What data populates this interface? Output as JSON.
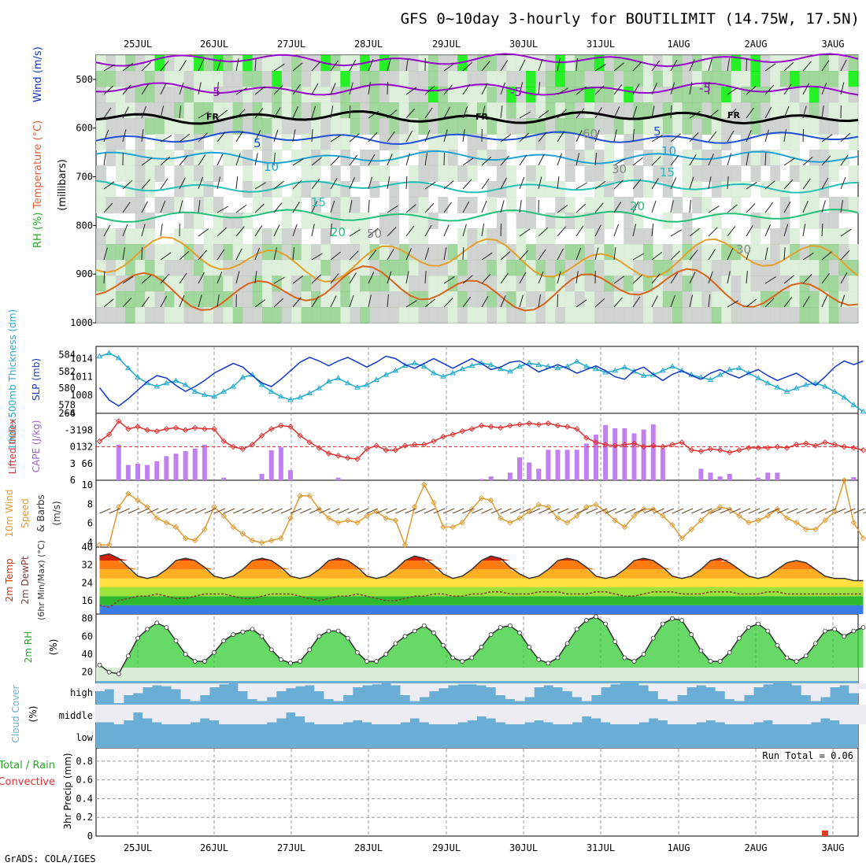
{
  "title": "GFS 0~10day 3-hourly for BOUTILIMIT (14.75W, 17.5N)",
  "credit": "GrADS: COLA/IGES",
  "colors": {
    "rh_light": "#d8ecd6",
    "rh_mid": "#90d08c",
    "rh_dark": "#33cc33",
    "rh_bright": "#00ee00",
    "grey_shade": "#c8cdc8",
    "freezing": "#000000",
    "purple": "#9900cc",
    "blue": "#1f52d6",
    "cyan": "#1fa3d6",
    "teal": "#22c0b8",
    "green_iso": "#22c07a",
    "orange": "#e3a02a",
    "orange_dark": "#d9641e",
    "slp": "#1138c8",
    "thick": "#22aacc",
    "lifted": "#e03030",
    "cape": "#c080f0",
    "wind": "#e09a30",
    "barb": "#6b4a2a",
    "temp_band": "#f0a020",
    "rh2m": "#33cc33",
    "cloud": "#6aaed6",
    "precip": "#e04020"
  },
  "days": [
    "25JUL",
    "26JUL",
    "27JUL",
    "28JUL",
    "29JUL",
    "30JUL",
    "31JUL",
    "1AUG",
    "2AUG",
    "3AUG"
  ],
  "panels": {
    "upper": {
      "ylabel_parts": [
        "RH (%)",
        "Temperature (°C)",
        "Wind (m/s)"
      ],
      "yunit": "(millibars)",
      "yticks": [
        "500",
        "600",
        "700",
        "800",
        "900",
        "1000"
      ],
      "isotherm_labels": [
        "-5",
        "FR",
        "5",
        "10",
        "15",
        "20",
        "-5",
        "FR",
        "5",
        "10",
        "15",
        "20",
        "-5",
        "FR",
        "50",
        "60",
        "30",
        "30"
      ]
    },
    "slp": {
      "ylabel_left": "1000~500mb Thickness (dm)",
      "ylabel_right": "SLP (mb)",
      "left_ticks": [
        "584",
        "582",
        "580",
        "578"
      ],
      "right_ticks": [
        "1014",
        "1011",
        "1008"
      ],
      "extra_tick": "264"
    },
    "cape": {
      "ylabel_left": "Lifted Index",
      "ylabel_right": "CAPE (J/kg)",
      "left_ticks": [
        "-6",
        "-3",
        "0",
        "3",
        "6"
      ],
      "right_ticks": [
        "198",
        "132",
        "66"
      ]
    },
    "wind10": {
      "ylabel": "10m Wind Speed & Barbs (m/s)",
      "ylabel_parts": [
        "10m Wind",
        "Speed",
        "& Barbs",
        "(m/s)"
      ],
      "ticks": [
        "10",
        "8",
        "6",
        "4"
      ]
    },
    "temp2m": {
      "ylabel_parts": [
        "2m Temp",
        "2m DewPt",
        "(6hr Min/Max) (°C)"
      ],
      "ticks": [
        "40",
        "32",
        "24",
        "16"
      ]
    },
    "rh2m": {
      "ylabel": "2m RH",
      "unit": "(%)",
      "ticks": [
        "80",
        "60",
        "40",
        "20"
      ]
    },
    "cloud": {
      "ylabel": "Cloud Cover",
      "unit": "(%)",
      "levels": [
        "high",
        "middle",
        "low"
      ]
    },
    "precip": {
      "ylabel_parts": [
        "Total / Rain",
        "Convective",
        "3hr Precip (mm)"
      ],
      "ticks": [
        "0.8",
        "0.6",
        "0.4",
        "0.2",
        "0"
      ],
      "run_total": "Run Total = 0.06"
    }
  },
  "chart_data": [
    {
      "type": "line",
      "name": "1000-500mb thickness (dm)",
      "x_unit": "3-hour steps from 24JUL 12Z",
      "ylim": [
        577,
        585
      ],
      "values": [
        583.8,
        584.2,
        583.6,
        582.4,
        581.3,
        580.6,
        580.2,
        580.6,
        580.9,
        580.4,
        579.6,
        579.2,
        579.0,
        579.6,
        580.2,
        581.3,
        581.6,
        580.4,
        579.6,
        579.0,
        578.6,
        578.9,
        579.4,
        580.0,
        580.8,
        581.2,
        580.6,
        580.1,
        580.4,
        581.0,
        581.6,
        582.1,
        582.7,
        583.0,
        582.6,
        581.8,
        581.4,
        581.8,
        582.3,
        582.7,
        583.0,
        582.8,
        582.3,
        582.0,
        582.6,
        583.0,
        582.8,
        582.6,
        582.4,
        582.6,
        583.2,
        582.6,
        582.3,
        581.9,
        582.1,
        582.5,
        582.0,
        581.5,
        581.6,
        582.1,
        582.6,
        582.1,
        581.6,
        581.3,
        581.0,
        581.6,
        582.2,
        582.4,
        581.8,
        581.2,
        580.6,
        580.1,
        579.6,
        580.0,
        580.4,
        580.6,
        580.2,
        579.6,
        578.9,
        578.0,
        577.2
      ]
    },
    {
      "type": "line",
      "name": "SLP (mb)",
      "ylim": [
        1005,
        1016
      ],
      "values": [
        1009.2,
        1007.2,
        1006.2,
        1007.4,
        1008.8,
        1010.2,
        1011.2,
        1010.8,
        1009.6,
        1008.6,
        1009.4,
        1010.4,
        1011.6,
        1012.4,
        1013.2,
        1012.6,
        1011.2,
        1010.0,
        1009.4,
        1010.6,
        1012.0,
        1013.4,
        1014.2,
        1013.6,
        1012.8,
        1013.6,
        1014.2,
        1013.4,
        1012.6,
        1013.4,
        1014.4,
        1014.0,
        1013.0,
        1012.4,
        1013.2,
        1014.0,
        1013.2,
        1012.4,
        1013.2,
        1014.0,
        1013.2,
        1012.2,
        1012.6,
        1013.4,
        1013.6,
        1012.8,
        1011.8,
        1012.4,
        1013.0,
        1012.4,
        1011.6,
        1012.2,
        1012.8,
        1012.0,
        1011.0,
        1010.6,
        1012.0,
        1012.6,
        1011.4,
        1010.4,
        1011.4,
        1012.0,
        1011.2,
        1010.6,
        1011.6,
        1012.2,
        1011.4,
        1010.8,
        1011.6,
        1012.2,
        1011.2,
        1010.4,
        1011.0,
        1011.6,
        1010.6,
        1009.6,
        1011.0,
        1012.6,
        1013.6,
        1013.0,
        1013.6
      ]
    },
    {
      "type": "line",
      "name": "Lifted Index",
      "ylim": [
        6,
        -6
      ],
      "values": [
        -1.0,
        -2.2,
        -4.6,
        -3.2,
        -3.6,
        -3.0,
        -2.8,
        -3.2,
        -3.4,
        -3.0,
        -3.4,
        -3.2,
        -3.2,
        -1.0,
        0,
        0.4,
        -0.4,
        -2.0,
        -3.2,
        -3.8,
        -3.6,
        -2.0,
        -0.8,
        0.2,
        1.2,
        1.6,
        2.0,
        2.2,
        0.4,
        -0.2,
        0.6,
        0.6,
        -0.2,
        -0.4,
        -0.4,
        -1.0,
        -1.8,
        -2.2,
        -2.8,
        -3.2,
        -3.8,
        -3.6,
        -3.4,
        -3.8,
        -4.0,
        -4.2,
        -4.0,
        -4.2,
        -3.8,
        -3.6,
        -3.2,
        -1.6,
        -0.8,
        -0.4,
        -0.2,
        -0.4,
        -0.6,
        0,
        -0.2,
        0,
        -0.4,
        -0.8,
        0.6,
        0.8,
        0.4,
        0.6,
        1.0,
        0.6,
        0.2,
        0.2,
        0.2,
        0.0,
        0.2,
        -0.4,
        -0.6,
        -0.2,
        -0.8,
        -0.4,
        0.0,
        0.2,
        0.6
      ]
    },
    {
      "type": "bar",
      "name": "CAPE (J/kg)",
      "ylim": [
        0,
        264
      ],
      "values": [
        0,
        0,
        140,
        60,
        65,
        60,
        75,
        95,
        105,
        115,
        125,
        140,
        0,
        10,
        0,
        0,
        0,
        25,
        118,
        130,
        40,
        0,
        0,
        0,
        0,
        10,
        0,
        0,
        0,
        0,
        0,
        0,
        0,
        0,
        0,
        0,
        0,
        0,
        0,
        0,
        5,
        15,
        0,
        30,
        90,
        70,
        45,
        120,
        120,
        120,
        120,
        145,
        180,
        218,
        205,
        205,
        185,
        200,
        220,
        125,
        0,
        0,
        0,
        45,
        30,
        15,
        25,
        0,
        0,
        10,
        30,
        30,
        0,
        0,
        0,
        0,
        0,
        0,
        0,
        12,
        0
      ]
    },
    {
      "type": "line",
      "name": "10m Wind Speed (m/s)",
      "ylim": [
        4,
        10
      ],
      "values": [
        4.2,
        4.2,
        7.6,
        8.8,
        8.2,
        7.6,
        6.6,
        6.2,
        5.8,
        4.8,
        4.6,
        5.6,
        7.6,
        6.8,
        5.8,
        5.2,
        4.6,
        4.4,
        4.6,
        4.8,
        6.6,
        8.6,
        8.6,
        7.4,
        6.6,
        6.2,
        6.4,
        6.2,
        6.8,
        7.2,
        6.6,
        6.4,
        4.2,
        7.6,
        9.6,
        8.0,
        5.8,
        5.8,
        6.2,
        7.4,
        8.4,
        8.2,
        6.6,
        6.2,
        6.6,
        7.2,
        7.8,
        7.6,
        6.6,
        6.2,
        6.8,
        7.6,
        7.8,
        7.2,
        6.4,
        5.8,
        6.8,
        7.4,
        7.4,
        6.8,
        6.0,
        4.8,
        5.6,
        6.4,
        7.2,
        7.6,
        7.4,
        6.8,
        6.2,
        6.4,
        6.8,
        7.4,
        6.6,
        6.2,
        5.6,
        5.6,
        6.4,
        7.2,
        10.0,
        6.2,
        4.8
      ]
    },
    {
      "type": "line",
      "name": "2m Temperature (°C)",
      "ylim": [
        10,
        40
      ],
      "values": [
        36,
        37,
        35,
        31,
        27,
        26,
        27,
        30,
        34,
        35,
        34,
        31,
        27,
        26,
        27,
        30,
        34,
        35,
        34,
        31,
        27,
        26,
        27,
        30,
        34,
        35,
        34,
        31,
        27,
        26,
        27,
        30,
        34,
        36,
        35,
        32,
        28,
        26,
        27,
        30,
        34,
        36,
        35,
        31,
        28,
        26,
        27,
        30,
        34,
        35,
        34,
        31,
        27,
        26,
        27,
        30,
        34,
        35,
        34,
        31,
        27,
        26,
        27,
        30,
        34,
        35,
        33,
        30,
        27,
        26,
        27,
        30,
        33,
        34,
        33,
        30,
        27,
        26,
        26,
        25,
        25
      ]
    },
    {
      "type": "line",
      "name": "2m Dew Point (°C)",
      "ylim": [
        10,
        40
      ],
      "values": [
        14,
        13,
        16,
        17,
        18,
        18,
        19,
        18,
        17,
        17,
        18,
        19,
        19,
        19,
        18,
        17,
        17,
        18,
        19,
        19,
        19,
        18,
        17,
        16,
        17,
        18,
        18,
        19,
        18,
        17,
        16,
        16,
        17,
        18,
        18,
        19,
        19,
        18,
        18,
        19,
        19,
        20,
        20,
        19,
        19,
        19,
        20,
        20,
        20,
        19,
        19,
        19,
        20,
        20,
        19,
        18,
        18,
        19,
        20,
        20,
        20,
        19,
        19,
        19,
        20,
        20,
        20,
        19,
        19,
        19,
        20,
        20,
        19,
        19,
        19,
        19,
        19,
        19,
        19,
        19,
        19
      ]
    },
    {
      "type": "line",
      "name": "2m RH (%)",
      "ylim": [
        10,
        85
      ],
      "values": [
        28,
        20,
        18,
        38,
        58,
        68,
        75,
        70,
        55,
        40,
        32,
        32,
        42,
        55,
        62,
        65,
        68,
        60,
        45,
        34,
        30,
        32,
        45,
        60,
        66,
        66,
        58,
        42,
        32,
        32,
        40,
        52,
        60,
        66,
        72,
        64,
        50,
        36,
        32,
        36,
        48,
        62,
        70,
        72,
        64,
        48,
        34,
        30,
        36,
        52,
        68,
        78,
        82,
        74,
        54,
        36,
        32,
        40,
        58,
        74,
        80,
        78,
        62,
        44,
        32,
        32,
        42,
        58,
        70,
        74,
        66,
        50,
        36,
        32,
        38,
        52,
        66,
        68,
        60,
        66,
        70
      ]
    },
    {
      "type": "bar",
      "name": "Cloud Cover high (%)",
      "ylim": [
        0,
        100
      ],
      "values": [
        60,
        70,
        0,
        40,
        50,
        80,
        90,
        85,
        70,
        20,
        10,
        40,
        80,
        95,
        100,
        60,
        20,
        10,
        30,
        60,
        75,
        85,
        90,
        60,
        20,
        10,
        40,
        80,
        90,
        95,
        100,
        90,
        40,
        10,
        30,
        60,
        75,
        90,
        95,
        95,
        90,
        80,
        40,
        20,
        10,
        30,
        80,
        90,
        80,
        60,
        30,
        10,
        40,
        80,
        95,
        100,
        100,
        90,
        60,
        20,
        10,
        40,
        80,
        90,
        80,
        60,
        20,
        10,
        40,
        80,
        95,
        100,
        100,
        90,
        40,
        10,
        30,
        80,
        90,
        50,
        70
      ]
    },
    {
      "type": "bar",
      "name": "Cloud Cover middle (%)",
      "ylim": [
        0,
        100
      ],
      "values": [
        10,
        10,
        0,
        20,
        60,
        30,
        10,
        0,
        0,
        0,
        10,
        30,
        20,
        0,
        0,
        0,
        0,
        0,
        10,
        30,
        60,
        40,
        10,
        0,
        0,
        0,
        10,
        20,
        10,
        0,
        0,
        0,
        10,
        30,
        10,
        0,
        0,
        0,
        10,
        20,
        40,
        30,
        10,
        0,
        0,
        10,
        20,
        10,
        0,
        0,
        10,
        40,
        30,
        10,
        0,
        0,
        0,
        10,
        30,
        20,
        0,
        0,
        0,
        10,
        20,
        10,
        0,
        0,
        0,
        10,
        20,
        0,
        0,
        0,
        0,
        10,
        30,
        20,
        0,
        0,
        0
      ]
    },
    {
      "type": "bar",
      "name": "3hr Precip (mm)",
      "ylim": [
        0,
        0.9
      ],
      "values": [
        0,
        0,
        0,
        0,
        0,
        0,
        0,
        0,
        0,
        0,
        0,
        0,
        0,
        0,
        0,
        0,
        0,
        0,
        0,
        0,
        0,
        0,
        0,
        0,
        0,
        0,
        0,
        0,
        0,
        0,
        0,
        0,
        0,
        0,
        0,
        0,
        0,
        0,
        0,
        0,
        0,
        0,
        0,
        0,
        0,
        0,
        0,
        0,
        0,
        0,
        0,
        0,
        0,
        0,
        0,
        0,
        0,
        0,
        0,
        0,
        0,
        0,
        0,
        0,
        0,
        0,
        0,
        0,
        0,
        0,
        0,
        0,
        0,
        0,
        0,
        0,
        0.06,
        0,
        0,
        0,
        0
      ]
    }
  ]
}
